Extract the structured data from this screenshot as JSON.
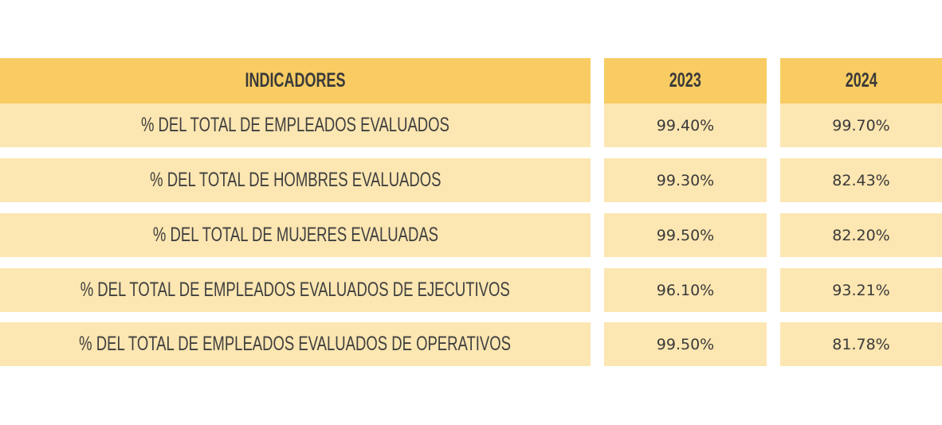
{
  "colors": {
    "header_fill": "#f8cc63",
    "row_fill": "#fce6b1",
    "text": "#3a3a3a"
  },
  "table": {
    "headers": [
      "INDICADORES",
      "2023",
      "2024"
    ],
    "rows": [
      {
        "label": "% DEL TOTAL DE EMPLEADOS EVALUADOS",
        "y2023": "99.40%",
        "y2024": "99.70%"
      },
      {
        "label": "% DEL TOTAL DE HOMBRES EVALUADOS",
        "y2023": "99.30%",
        "y2024": "82.43%"
      },
      {
        "label": "% DEL TOTAL DE MUJERES EVALUADAS",
        "y2023": "99.50%",
        "y2024": "82.20%"
      },
      {
        "label": "% DEL TOTAL DE EMPLEADOS EVALUADOS DE EJECUTIVOS",
        "y2023": "96.10%",
        "y2024": "93.21%"
      },
      {
        "label": "% DEL TOTAL DE EMPLEADOS EVALUADOS DE OPERATIVOS",
        "y2023": "99.50%",
        "y2024": "81.78%"
      }
    ]
  }
}
